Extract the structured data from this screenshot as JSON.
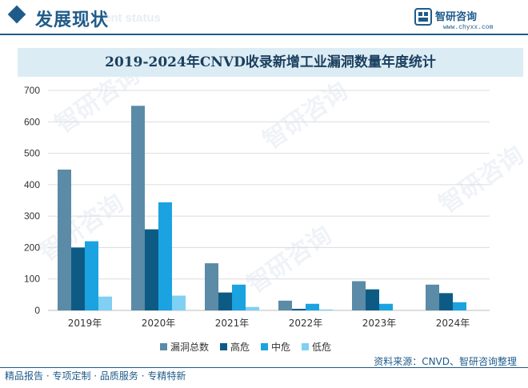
{
  "header": {
    "title": "发展现状",
    "subtitle": "ent status",
    "logo_name": "智研咨询",
    "logo_url": "www.chyxx.com"
  },
  "watermark": "智研咨询",
  "chart_data": {
    "type": "bar",
    "title": "2019-2024年CNVD收录新增工业漏洞数量年度统计",
    "categories": [
      "2019年",
      "2020年",
      "2021年",
      "2022年",
      "2023年",
      "2024年"
    ],
    "series": [
      {
        "name": "漏洞总数",
        "color": "#5b8ba6",
        "values": [
          448,
          651,
          150,
          31,
          93,
          82
        ]
      },
      {
        "name": "高危",
        "color": "#0d5b85",
        "values": [
          200,
          258,
          57,
          5,
          67,
          55
        ]
      },
      {
        "name": "中危",
        "color": "#1aa3e0",
        "values": [
          220,
          344,
          82,
          21,
          21,
          26
        ]
      },
      {
        "name": "低危",
        "color": "#7fd0f2",
        "values": [
          44,
          47,
          11,
          3,
          0,
          0
        ]
      }
    ],
    "yticks": [
      0,
      100,
      200,
      300,
      400,
      500,
      600,
      700
    ],
    "ylim": [
      0,
      700
    ],
    "grid": true,
    "legend": "bottom"
  },
  "footer": {
    "source": "资料来源：CNVD、智研咨询整理",
    "slogan": "精品报告 · 专项定制 · 品质服务 · 专精特新"
  }
}
